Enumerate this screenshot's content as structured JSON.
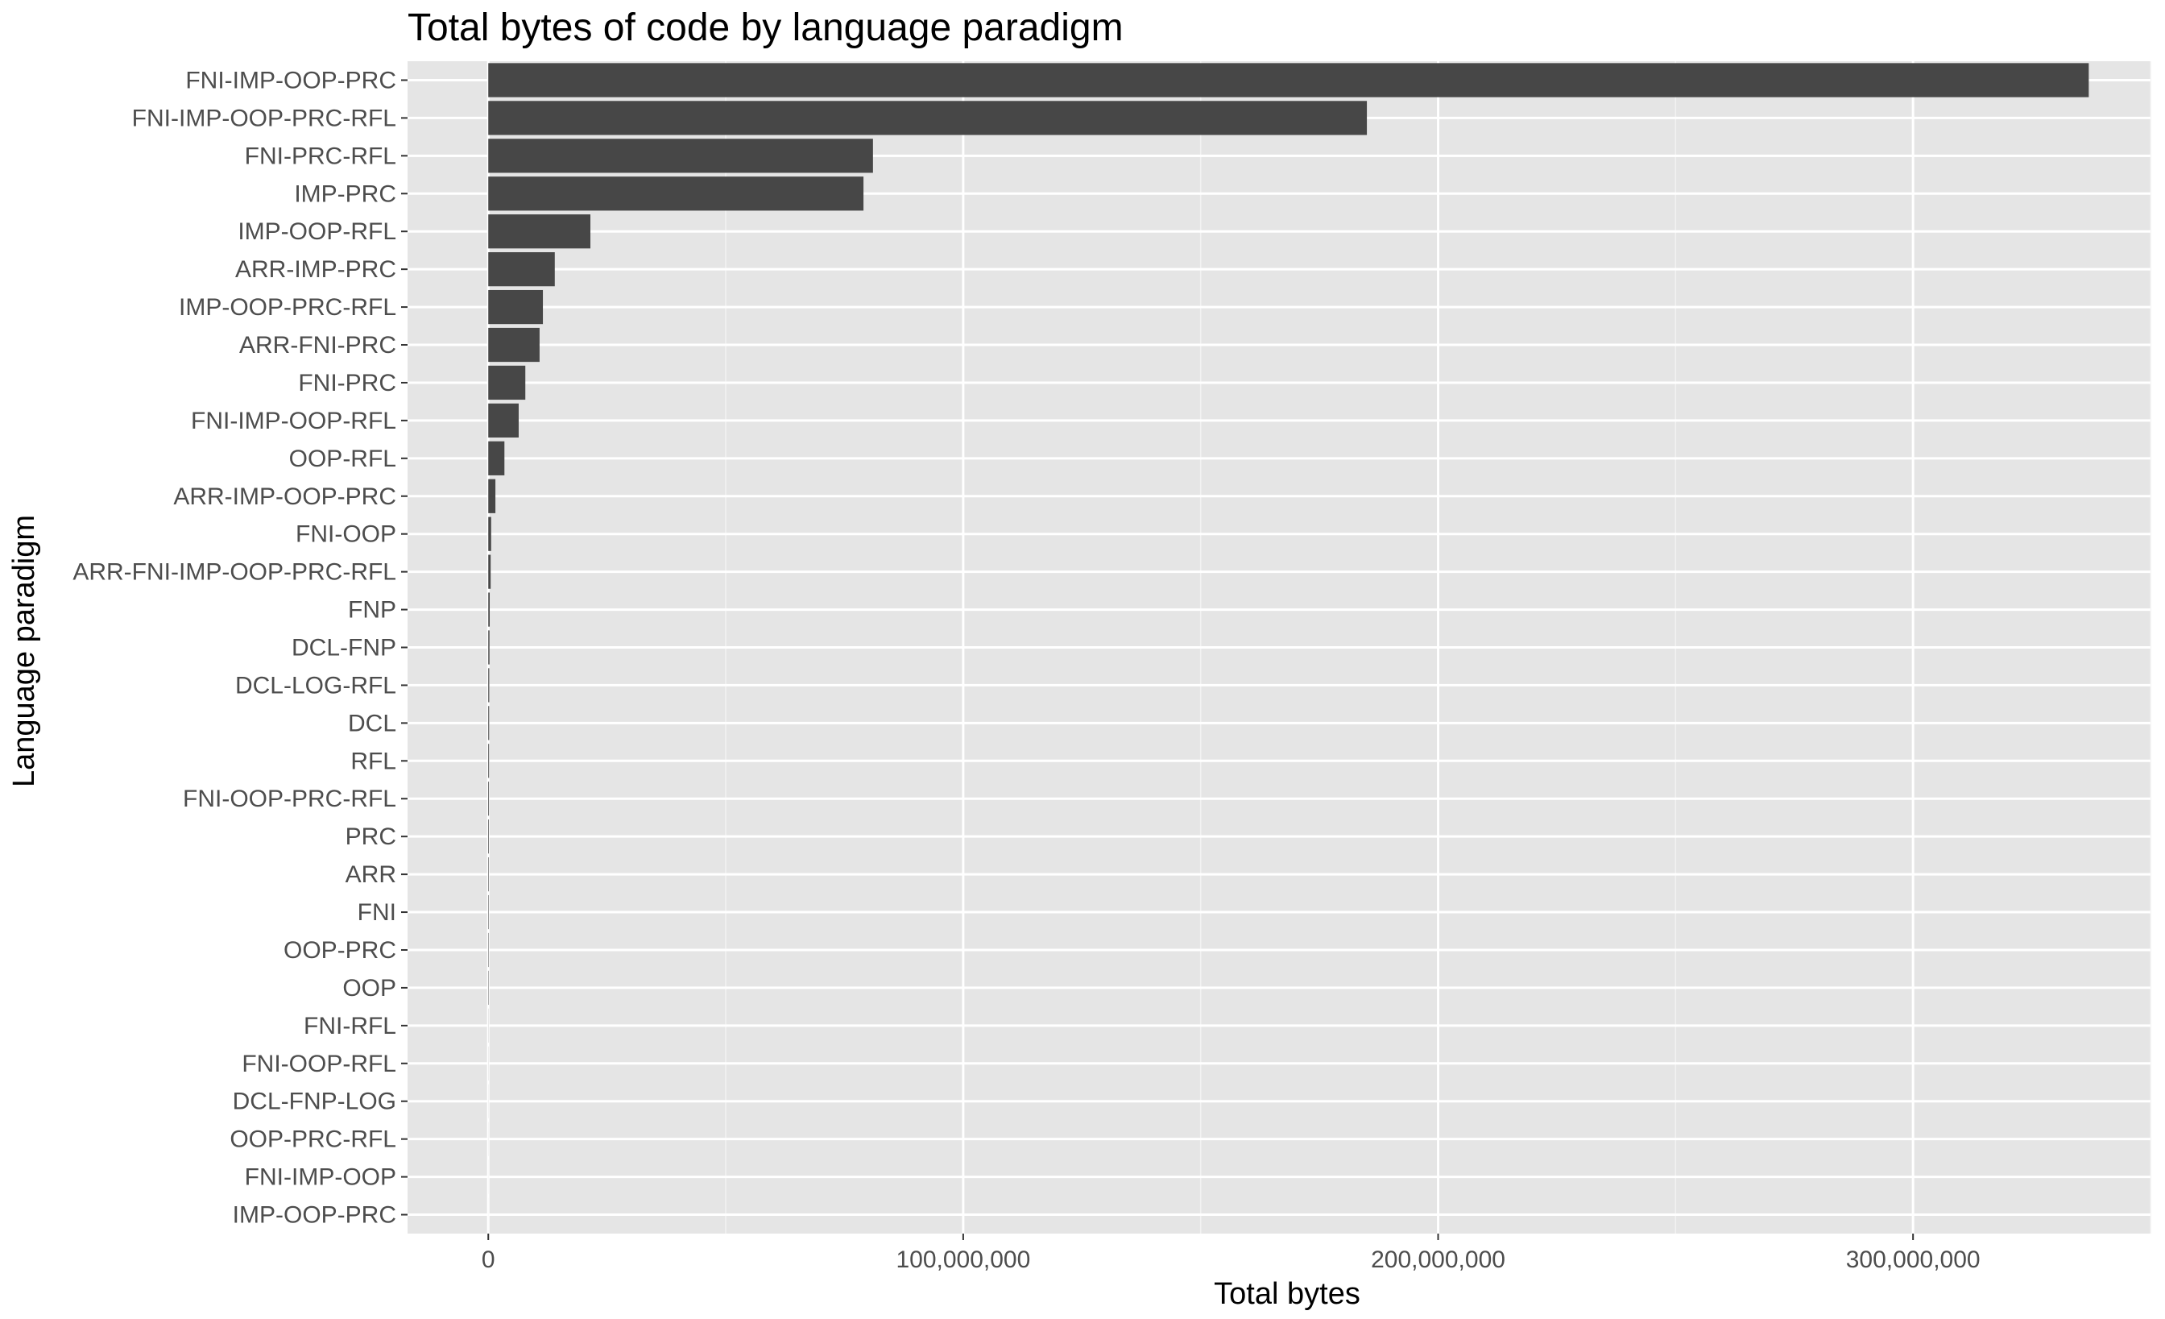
{
  "chart_data": {
    "type": "bar",
    "orientation": "horizontal",
    "title": "Total bytes of code by language paradigm",
    "xlabel": "Total bytes",
    "ylabel": "Language paradigm",
    "xlim": [
      -17000000,
      350000000
    ],
    "x_ticks": [
      0,
      100000000,
      200000000,
      300000000
    ],
    "x_tick_labels": [
      "0",
      "100,000,000",
      "200,000,000",
      "300,000,000"
    ],
    "grid": true,
    "bar_color": "#474747",
    "panel_background": "#e5e5e5",
    "categories": [
      "FNI-IMP-OOP-PRC",
      "FNI-IMP-OOP-PRC-RFL",
      "FNI-PRC-RFL",
      "IMP-PRC",
      "IMP-OOP-RFL",
      "ARR-IMP-PRC",
      "IMP-OOP-PRC-RFL",
      "ARR-FNI-PRC",
      "FNI-PRC",
      "FNI-IMP-OOP-RFL",
      "OOP-RFL",
      "ARR-IMP-OOP-PRC",
      "FNI-OOP",
      "ARR-FNI-IMP-OOP-PRC-RFL",
      "FNP",
      "DCL-FNP",
      "DCL-LOG-RFL",
      "DCL",
      "RFL",
      "FNI-OOP-PRC-RFL",
      "PRC",
      "ARR",
      "FNI",
      "OOP-PRC",
      "OOP",
      "FNI-RFL",
      "FNI-OOP-RFL",
      "DCL-FNP-LOG",
      "OOP-PRC-RFL",
      "FNI-IMP-OOP",
      "IMP-OOP-PRC"
    ],
    "values": [
      337000000,
      185000000,
      81000000,
      79000000,
      21500000,
      14000000,
      11500000,
      10800000,
      7800000,
      6400000,
      3400000,
      1500000,
      600000,
      500000,
      300000,
      250000,
      200000,
      180000,
      160000,
      140000,
      120000,
      100000,
      90000,
      80000,
      70000,
      20000,
      15000,
      10000,
      8000,
      5000,
      3000
    ]
  }
}
